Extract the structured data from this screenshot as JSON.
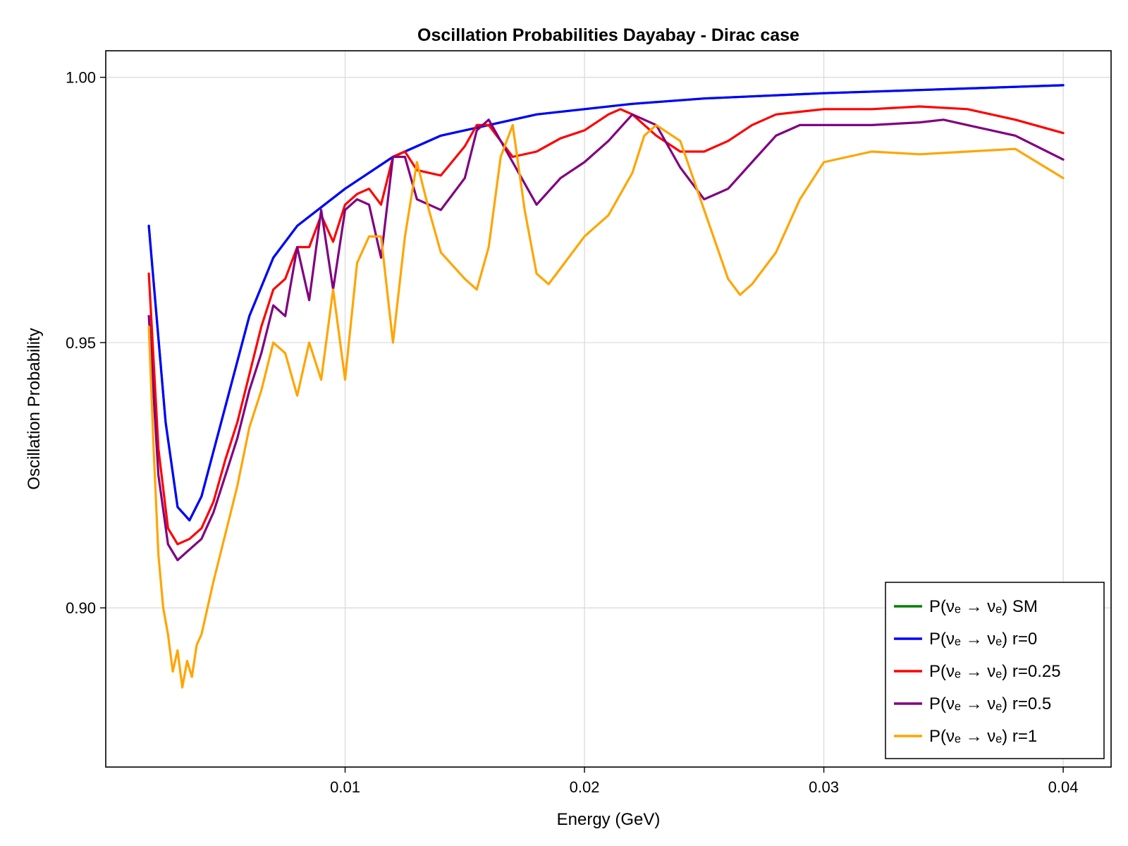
{
  "chart_data": {
    "type": "line",
    "title": "Oscillation Probabilities Dayabay - Dirac case",
    "xlabel": "Energy (GeV)",
    "ylabel": "Oscillation Probability",
    "xlim": [
      0.0,
      0.042
    ],
    "ylim": [
      0.87,
      1.005
    ],
    "xticks": [
      0.01,
      0.02,
      0.03,
      0.04
    ],
    "xtick_labels": [
      "0.01",
      "0.02",
      "0.03",
      "0.04"
    ],
    "yticks": [
      0.9,
      0.95,
      1.0
    ],
    "ytick_labels": [
      "0.90",
      "0.95",
      "1.00"
    ],
    "grid": true,
    "legend_position": "bottom-right",
    "series": [
      {
        "name": "P(νₑ → νₑ) SM",
        "color": "#008000",
        "x": [
          0.0018,
          0.0025,
          0.003,
          0.0035,
          0.004,
          0.005,
          0.006,
          0.007,
          0.008,
          0.01,
          0.012,
          0.014,
          0.016,
          0.018,
          0.02,
          0.022,
          0.025,
          0.028,
          0.03,
          0.034,
          0.038,
          0.04
        ],
        "y": [
          0.972,
          0.935,
          0.919,
          0.9165,
          0.921,
          0.938,
          0.955,
          0.966,
          0.972,
          0.979,
          0.985,
          0.989,
          0.991,
          0.993,
          0.994,
          0.995,
          0.996,
          0.9966,
          0.997,
          0.9976,
          0.9982,
          0.9985
        ]
      },
      {
        "name": "P(νₑ → νₑ) r=0",
        "color": "#0000ff",
        "x": [
          0.0018,
          0.0025,
          0.003,
          0.0035,
          0.004,
          0.005,
          0.006,
          0.007,
          0.008,
          0.01,
          0.012,
          0.014,
          0.016,
          0.018,
          0.02,
          0.022,
          0.025,
          0.028,
          0.03,
          0.034,
          0.038,
          0.04
        ],
        "y": [
          0.972,
          0.935,
          0.919,
          0.9165,
          0.921,
          0.938,
          0.955,
          0.966,
          0.972,
          0.979,
          0.985,
          0.989,
          0.991,
          0.993,
          0.994,
          0.995,
          0.996,
          0.9966,
          0.997,
          0.9976,
          0.9982,
          0.9985
        ]
      },
      {
        "name": "P(νₑ →  νₑ) r=0.25",
        "color": "#ff0000",
        "x": [
          0.0018,
          0.0022,
          0.0026,
          0.003,
          0.0035,
          0.004,
          0.0045,
          0.005,
          0.0055,
          0.006,
          0.0065,
          0.007,
          0.0075,
          0.008,
          0.0085,
          0.009,
          0.0095,
          0.01,
          0.0105,
          0.011,
          0.0115,
          0.012,
          0.0125,
          0.013,
          0.014,
          0.015,
          0.0155,
          0.016,
          0.017,
          0.018,
          0.019,
          0.02,
          0.021,
          0.0215,
          0.022,
          0.023,
          0.024,
          0.025,
          0.026,
          0.027,
          0.028,
          0.029,
          0.03,
          0.032,
          0.034,
          0.036,
          0.038,
          0.04
        ],
        "y": [
          0.963,
          0.93,
          0.915,
          0.912,
          0.913,
          0.915,
          0.92,
          0.928,
          0.935,
          0.944,
          0.953,
          0.96,
          0.962,
          0.968,
          0.968,
          0.974,
          0.969,
          0.976,
          0.978,
          0.979,
          0.976,
          0.985,
          0.986,
          0.9825,
          0.9815,
          0.987,
          0.991,
          0.991,
          0.985,
          0.986,
          0.9885,
          0.99,
          0.993,
          0.994,
          0.993,
          0.989,
          0.986,
          0.986,
          0.988,
          0.991,
          0.993,
          0.9935,
          0.994,
          0.994,
          0.9945,
          0.994,
          0.992,
          0.9895
        ]
      },
      {
        "name": "P(νₑ →  νₑ) r=0.5",
        "color": "#800080",
        "x": [
          0.0018,
          0.0022,
          0.0026,
          0.003,
          0.0035,
          0.004,
          0.0045,
          0.005,
          0.0055,
          0.006,
          0.0065,
          0.007,
          0.0075,
          0.008,
          0.0085,
          0.009,
          0.0095,
          0.01,
          0.0105,
          0.011,
          0.0115,
          0.012,
          0.0125,
          0.013,
          0.014,
          0.015,
          0.0155,
          0.016,
          0.0165,
          0.017,
          0.018,
          0.019,
          0.02,
          0.021,
          0.022,
          0.023,
          0.024,
          0.025,
          0.026,
          0.027,
          0.028,
          0.029,
          0.03,
          0.032,
          0.034,
          0.035,
          0.036,
          0.038,
          0.04
        ],
        "y": [
          0.955,
          0.925,
          0.912,
          0.909,
          0.911,
          0.913,
          0.918,
          0.925,
          0.932,
          0.941,
          0.948,
          0.957,
          0.955,
          0.968,
          0.958,
          0.975,
          0.96,
          0.975,
          0.977,
          0.976,
          0.966,
          0.985,
          0.985,
          0.977,
          0.975,
          0.981,
          0.99,
          0.992,
          0.988,
          0.984,
          0.976,
          0.981,
          0.984,
          0.988,
          0.993,
          0.991,
          0.983,
          0.977,
          0.979,
          0.984,
          0.989,
          0.991,
          0.991,
          0.991,
          0.9915,
          0.992,
          0.991,
          0.989,
          0.9845
        ]
      },
      {
        "name": "P(νₑ →  νₑ) r=1",
        "color": "#ffa500",
        "x": [
          0.0018,
          0.002,
          0.0022,
          0.0024,
          0.0026,
          0.0028,
          0.003,
          0.0032,
          0.0034,
          0.0036,
          0.0038,
          0.004,
          0.0045,
          0.005,
          0.0055,
          0.006,
          0.0065,
          0.007,
          0.0075,
          0.008,
          0.0085,
          0.009,
          0.0095,
          0.01,
          0.0105,
          0.011,
          0.0115,
          0.012,
          0.0125,
          0.013,
          0.0135,
          0.014,
          0.015,
          0.0155,
          0.016,
          0.0165,
          0.017,
          0.0175,
          0.018,
          0.0185,
          0.019,
          0.02,
          0.021,
          0.022,
          0.0225,
          0.023,
          0.024,
          0.025,
          0.026,
          0.0265,
          0.027,
          0.028,
          0.029,
          0.03,
          0.031,
          0.032,
          0.034,
          0.036,
          0.038,
          0.04
        ],
        "y": [
          0.953,
          0.93,
          0.91,
          0.9,
          0.895,
          0.888,
          0.892,
          0.885,
          0.89,
          0.887,
          0.893,
          0.895,
          0.905,
          0.914,
          0.923,
          0.934,
          0.941,
          0.95,
          0.948,
          0.94,
          0.95,
          0.943,
          0.96,
          0.943,
          0.965,
          0.97,
          0.97,
          0.95,
          0.97,
          0.984,
          0.975,
          0.967,
          0.962,
          0.96,
          0.968,
          0.985,
          0.991,
          0.975,
          0.963,
          0.961,
          0.964,
          0.97,
          0.974,
          0.982,
          0.989,
          0.991,
          0.988,
          0.975,
          0.962,
          0.959,
          0.961,
          0.967,
          0.977,
          0.984,
          0.985,
          0.986,
          0.9855,
          0.986,
          0.9865,
          0.981
        ]
      }
    ]
  }
}
